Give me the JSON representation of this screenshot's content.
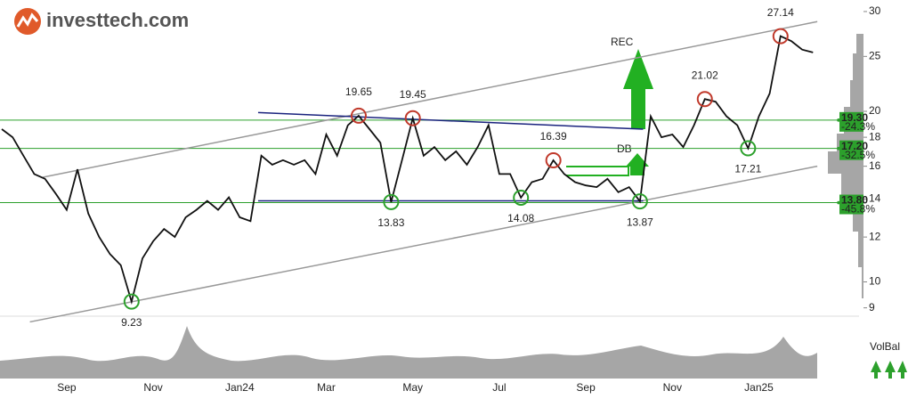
{
  "chart_data": {
    "type": "line",
    "logo": "investtech.com",
    "log_scale": true,
    "ylim": [
      8.7,
      31.1
    ],
    "yticks": [
      9,
      10,
      12,
      14,
      16,
      18,
      20,
      25,
      30
    ],
    "categories": [
      null,
      null,
      null,
      null,
      null,
      null,
      "Sep",
      null,
      null,
      null,
      null,
      null,
      null,
      null,
      "Nov",
      null,
      null,
      null,
      null,
      null,
      null,
      null,
      "Jan24",
      null,
      null,
      null,
      null,
      null,
      null,
      null,
      "Mar",
      null,
      null,
      null,
      null,
      null,
      null,
      null,
      "May",
      null,
      null,
      null,
      null,
      null,
      null,
      null,
      "Jul",
      null,
      null,
      null,
      null,
      null,
      null,
      null,
      "Sep",
      null,
      null,
      null,
      null,
      null,
      null,
      null,
      "Nov",
      null,
      null,
      null,
      null,
      null,
      null,
      null,
      "Jan25",
      null,
      null,
      null,
      null,
      null
    ],
    "series": [
      {
        "color": "#111111",
        "values": [
          18.6,
          18.0,
          16.7,
          15.5,
          15.2,
          14.3,
          13.4,
          15.8,
          13.2,
          12.0,
          11.2,
          10.7,
          9.23,
          11.0,
          11.8,
          12.4,
          12.0,
          13.0,
          13.4,
          13.9,
          13.4,
          14.1,
          13.0,
          12.8,
          16.7,
          16.1,
          16.4,
          16.1,
          16.4,
          15.5,
          18.2,
          16.7,
          18.9,
          19.65,
          18.6,
          17.6,
          13.83,
          16.4,
          19.45,
          16.7,
          17.3,
          16.4,
          17.0,
          16.1,
          17.3,
          18.9,
          15.5,
          15.5,
          14.08,
          15.0,
          15.2,
          16.39,
          15.5,
          15.0,
          14.8,
          14.7,
          15.2,
          14.4,
          14.7,
          13.87,
          19.6,
          18.0,
          18.2,
          17.3,
          18.9,
          21.02,
          20.8,
          19.6,
          18.9,
          17.21,
          19.6,
          21.5,
          27.14,
          26.6,
          25.7,
          25.4
        ]
      }
    ],
    "annotations": [
      {
        "index": 12,
        "text": "9.23",
        "color": "#2ca02c",
        "position": "below"
      },
      {
        "index": 33,
        "text": "19.65",
        "color": "#c0392b",
        "position": "above"
      },
      {
        "index": 36,
        "text": "13.83",
        "color": "#2ca02c",
        "position": "below"
      },
      {
        "index": 38,
        "text": "19.45",
        "color": "#c0392b",
        "position": "above"
      },
      {
        "index": 48,
        "text": "14.08",
        "color": "#2ca02c",
        "position": "below"
      },
      {
        "index": 51,
        "text": "16.39",
        "color": "#c0392b",
        "position": "above"
      },
      {
        "index": 59,
        "text": "13.87",
        "color": "#2ca02c",
        "position": "below"
      },
      {
        "index": 65,
        "text": "21.02",
        "color": "#c0392b",
        "position": "above"
      },
      {
        "index": 69,
        "text": "17.21",
        "color": "#2ca02c",
        "position": "below"
      },
      {
        "index": 72,
        "text": "27.14",
        "color": "#c0392b",
        "position": "above"
      }
    ],
    "trend_lines": [
      {
        "from": [
          3.8,
          15.3
        ],
        "to": [
          75.4,
          28.8
        ],
        "color": "#999999"
      },
      {
        "from": [
          2.6,
          8.5
        ],
        "to": [
          75.4,
          16.0
        ],
        "color": "#999999"
      },
      {
        "from": [
          23.7,
          19.9
        ],
        "to": [
          59.3,
          18.6
        ],
        "color": "#1a237e"
      },
      {
        "from": [
          23.7,
          13.9
        ],
        "to": [
          59.3,
          13.9
        ],
        "color": "#1a237e"
      }
    ],
    "levels": [
      {
        "value": 19.3,
        "label": "19.30",
        "change": "-24.3%"
      },
      {
        "value": 17.2,
        "label": "17.20",
        "change": "-32.5%"
      },
      {
        "value": 13.8,
        "label": "13.80",
        "change": "-45.8%"
      }
    ],
    "level_color": "#2ca02c",
    "signals": [
      "REC",
      "DB"
    ],
    "volume_label": "VolBal"
  }
}
